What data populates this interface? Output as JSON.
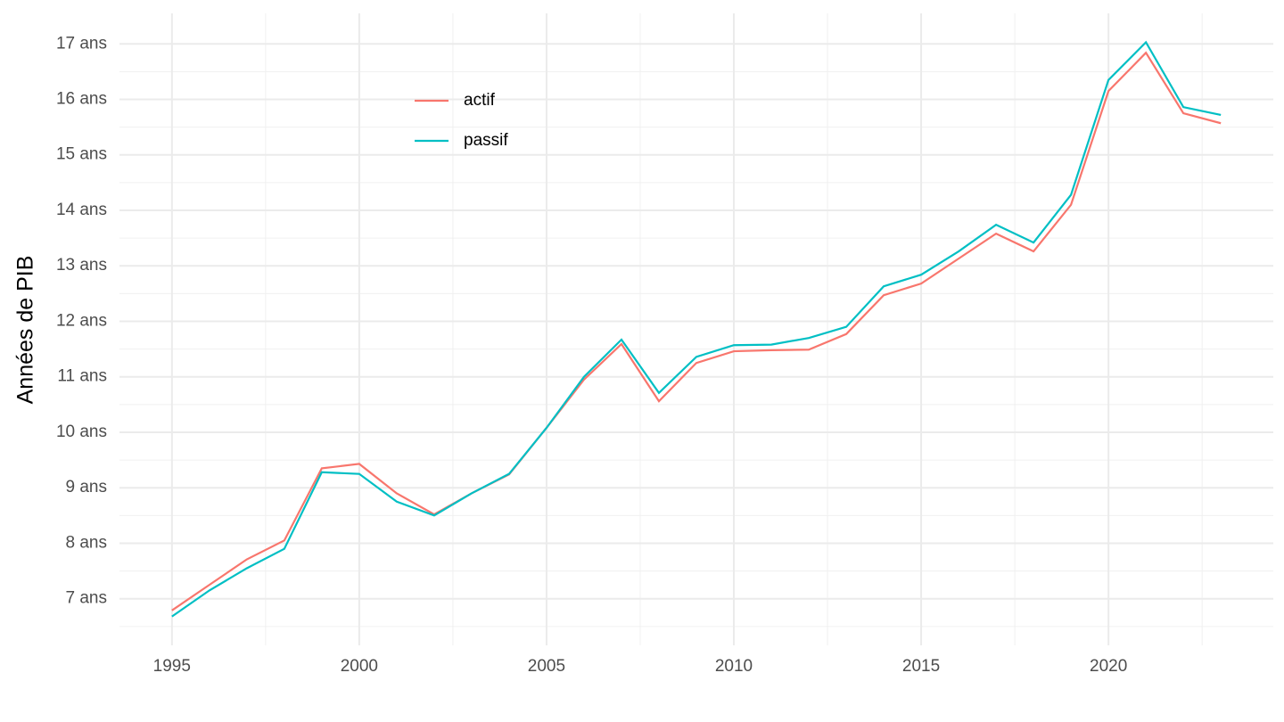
{
  "chart_data": {
    "type": "line",
    "ylabel": "Années de PIB",
    "x": [
      1995,
      1996,
      1997,
      1998,
      1999,
      2000,
      2001,
      2002,
      2003,
      2004,
      2005,
      2006,
      2007,
      2008,
      2009,
      2010,
      2011,
      2012,
      2013,
      2014,
      2015,
      2016,
      2017,
      2018,
      2019,
      2020,
      2021,
      2022,
      2023
    ],
    "series": [
      {
        "name": "actif",
        "color": "#F8766D",
        "values": [
          6.79,
          7.25,
          7.71,
          8.05,
          9.35,
          9.43,
          8.9,
          8.52,
          8.9,
          9.24,
          10.08,
          10.95,
          11.59,
          10.56,
          11.25,
          11.46,
          11.48,
          11.49,
          11.77,
          12.47,
          12.68,
          13.13,
          13.58,
          13.26,
          14.1,
          16.15,
          16.84,
          15.75,
          15.57
        ]
      },
      {
        "name": "passif",
        "color": "#00BFC4",
        "values": [
          6.68,
          7.15,
          7.55,
          7.9,
          9.28,
          9.25,
          8.75,
          8.5,
          8.9,
          9.25,
          10.08,
          11.0,
          11.67,
          10.71,
          11.36,
          11.57,
          11.58,
          11.7,
          11.9,
          12.63,
          12.84,
          13.26,
          13.74,
          13.42,
          14.28,
          16.35,
          17.03,
          15.86,
          15.72
        ]
      }
    ],
    "xlim": [
      1993.6,
      2024.4
    ],
    "xticks": [
      1995,
      2000,
      2005,
      2010,
      2015,
      2020
    ],
    "ylim": [
      6.16,
      17.55
    ],
    "yticks": [
      {
        "value": 7,
        "label": "7 ans"
      },
      {
        "value": 8,
        "label": "8 ans"
      },
      {
        "value": 9,
        "label": "9 ans"
      },
      {
        "value": 10,
        "label": "10 ans"
      },
      {
        "value": 11,
        "label": "11 ans"
      },
      {
        "value": 12,
        "label": "12 ans"
      },
      {
        "value": 13,
        "label": "13 ans"
      },
      {
        "value": 14,
        "label": "14 ans"
      },
      {
        "value": 15,
        "label": "15 ans"
      },
      {
        "value": 16,
        "label": "16 ans"
      },
      {
        "value": 17,
        "label": "17 ans"
      }
    ],
    "grid": true,
    "legend": "top-left"
  }
}
